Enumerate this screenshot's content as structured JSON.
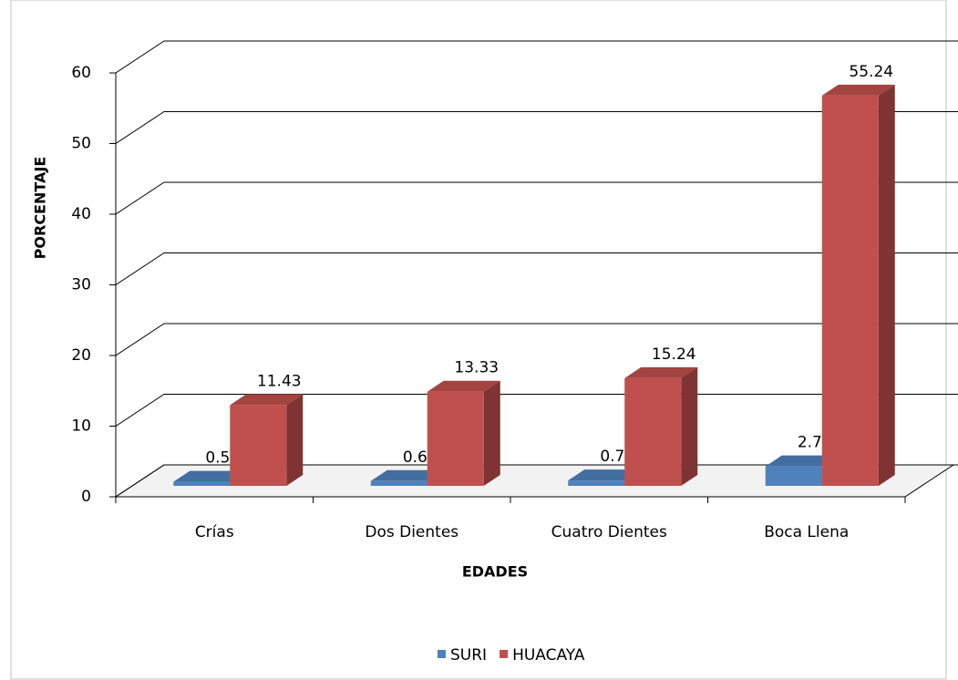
{
  "chart_data": {
    "type": "bar3d",
    "x_label": "EDADES",
    "y_label": "PORCENTAJE",
    "categories": [
      "Crías",
      "Dos Dientes",
      "Cuatro Dientes",
      "Boca Llena"
    ],
    "series": [
      {
        "name": "SURI",
        "color": "#4f81bd",
        "values": [
          0.57,
          0.67,
          0.76,
          2.76
        ]
      },
      {
        "name": "HUACAYA",
        "color": "#c0504d",
        "values": [
          11.43,
          13.33,
          15.24,
          55.24
        ]
      }
    ],
    "ylim": [
      0,
      60
    ],
    "yticks": [
      0,
      10,
      20,
      30,
      40,
      50,
      60
    ],
    "grid": true,
    "legend": "bottom"
  }
}
